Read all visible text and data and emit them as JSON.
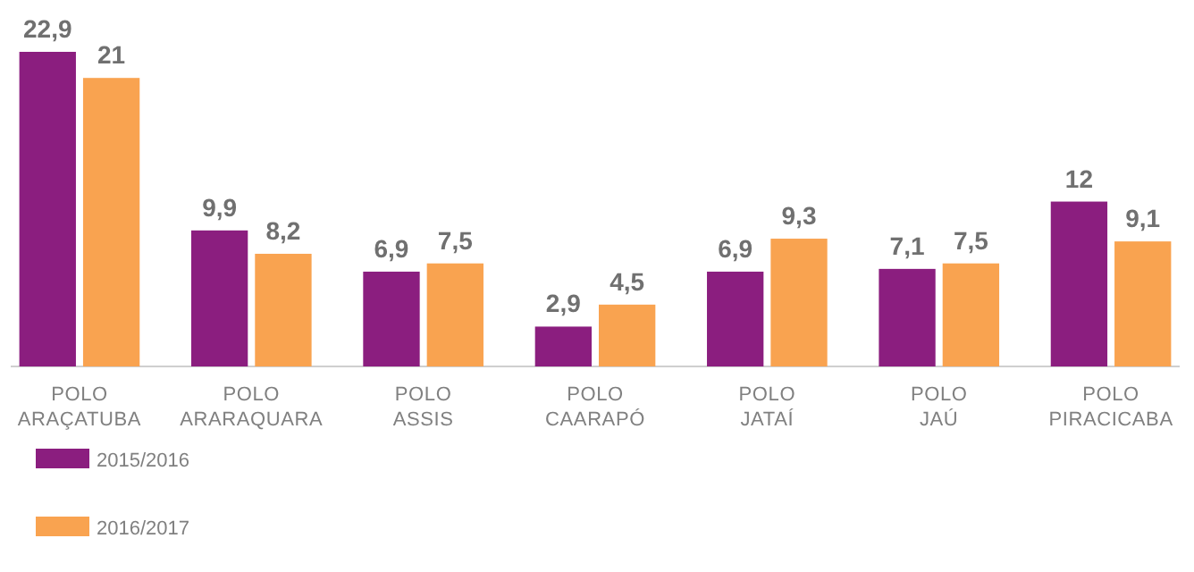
{
  "chart_data": {
    "type": "bar",
    "categories": [
      "POLO ARAÇATUBA",
      "POLO ARARAQUARA",
      "POLO ASSIS",
      "POLO CAARAPÓ",
      "POLO JATAÍ",
      "POLO JAÚ",
      "POLO PIRACICABA"
    ],
    "series": [
      {
        "name": "2015/2016",
        "color": "#8b1e7f",
        "values": [
          22.9,
          9.9,
          6.9,
          2.9,
          6.9,
          7.1,
          12
        ],
        "value_labels": [
          "22,9",
          "9,9",
          "6,9",
          "2,9",
          "6,9",
          "7,1",
          "12"
        ]
      },
      {
        "name": "2016/2017",
        "color": "#f9a350",
        "values": [
          21,
          8.2,
          7.5,
          4.5,
          9.3,
          7.5,
          9.1
        ],
        "value_labels": [
          "21",
          "8,2",
          "7,5",
          "4,5",
          "9,3",
          "7,5",
          "9,1"
        ]
      }
    ],
    "legend": "bottom left"
  }
}
